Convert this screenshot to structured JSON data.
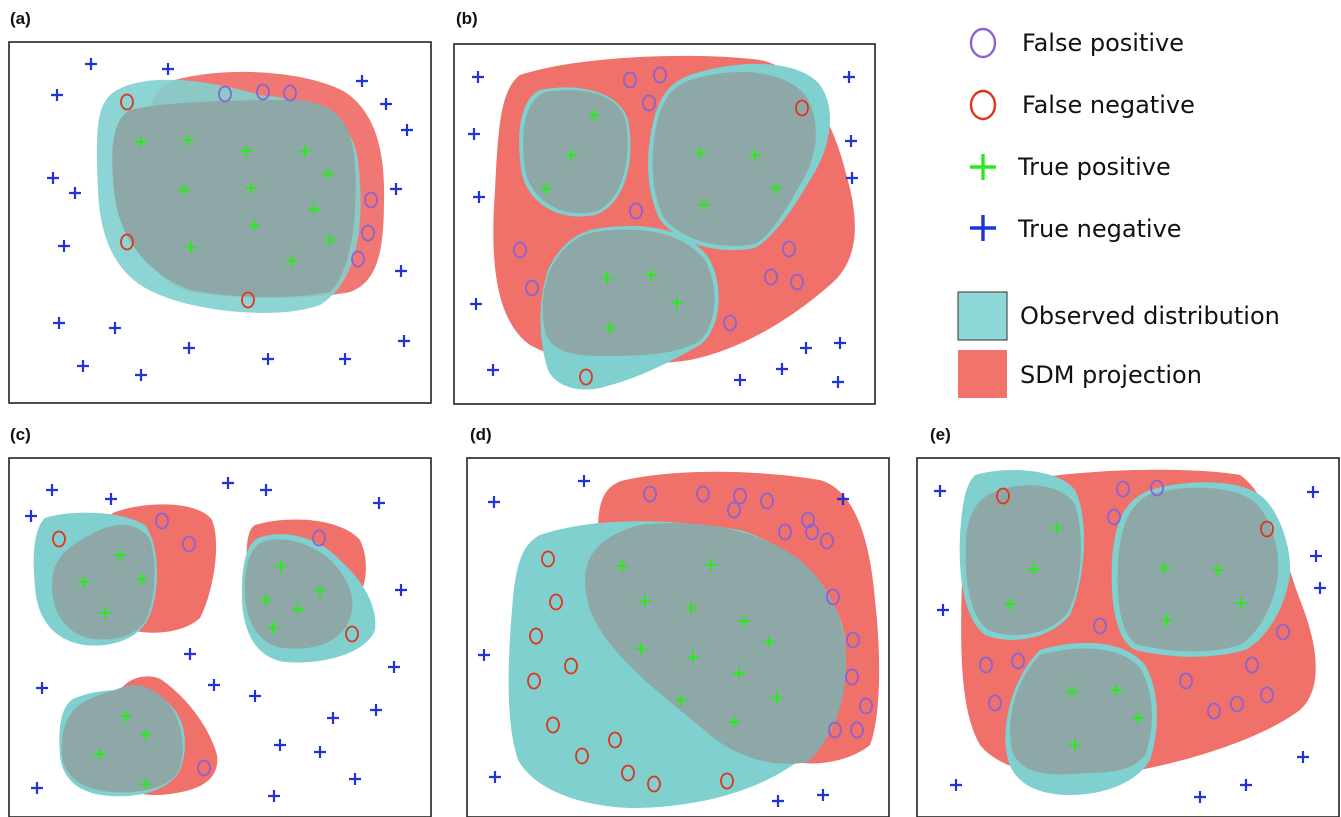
{
  "panels": [
    {
      "label": "(a)"
    },
    {
      "label": "(b)"
    },
    {
      "label": "(c)"
    },
    {
      "label": "(d)"
    },
    {
      "label": "(e)"
    }
  ],
  "legend": {
    "items": [
      {
        "key": "false_positive",
        "label": "False positive",
        "symbol": "circle",
        "color": "#8a63d2"
      },
      {
        "key": "false_negative",
        "label": "False negative",
        "symbol": "circle",
        "color": "#e0341c"
      },
      {
        "key": "true_positive",
        "label": "True positive",
        "symbol": "plus",
        "color": "#2ee81f"
      },
      {
        "key": "true_negative",
        "label": "True negative",
        "symbol": "plus",
        "color": "#1f33d6"
      },
      {
        "key": "observed_distribution",
        "label": "Observed distribution",
        "symbol": "swatch",
        "color": "#8fd8d8"
      },
      {
        "key": "sdm_projection",
        "label": "SDM projection",
        "symbol": "swatch",
        "color": "#f2736c"
      }
    ]
  },
  "colors": {
    "observed": "#7fd0cf",
    "sdm": "#f0706a",
    "overlap": "#8da8a6",
    "frame": "#222222"
  }
}
